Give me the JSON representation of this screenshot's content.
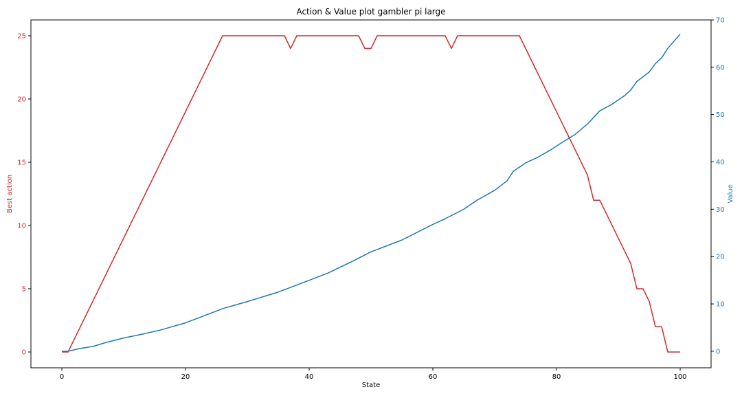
{
  "chart_data": {
    "type": "line",
    "title": "Action & Value plot gambler pi large",
    "xlabel": "State",
    "ylabel_left": "Best action",
    "ylabel_right": "Value",
    "colors": {
      "left": "#d62728",
      "right": "#1f77b4"
    },
    "xlim": [
      -5,
      105
    ],
    "ylim_left": [
      -1.25,
      26.25
    ],
    "ylim_right": [
      -3.5,
      70
    ],
    "x_ticks": [
      0,
      20,
      40,
      60,
      80,
      100
    ],
    "y_left_ticks": [
      0,
      5,
      10,
      15,
      20,
      25
    ],
    "y_right_ticks": [
      0,
      10,
      20,
      30,
      40,
      50,
      60,
      70
    ],
    "grid": false,
    "series": [
      {
        "axis": "left",
        "points": [
          [
            0,
            0
          ],
          [
            1,
            0
          ],
          [
            26,
            25
          ],
          [
            36,
            25
          ],
          [
            37,
            24
          ],
          [
            38,
            25
          ],
          [
            48,
            25
          ],
          [
            49,
            24
          ],
          [
            50,
            24
          ],
          [
            51,
            25
          ],
          [
            62,
            25
          ],
          [
            63,
            24
          ],
          [
            64,
            25
          ],
          [
            74,
            25
          ],
          [
            85,
            14
          ],
          [
            86,
            12
          ],
          [
            87,
            12
          ],
          [
            92,
            7
          ],
          [
            93,
            5
          ],
          [
            94,
            5
          ],
          [
            95,
            4
          ],
          [
            96,
            2
          ],
          [
            97,
            2
          ],
          [
            98,
            0
          ],
          [
            100,
            0
          ]
        ]
      },
      {
        "axis": "right",
        "points": [
          [
            0,
            0
          ],
          [
            1,
            0
          ],
          [
            3,
            0.6
          ],
          [
            5,
            1.0
          ],
          [
            7,
            1.8
          ],
          [
            10,
            2.8
          ],
          [
            13,
            3.6
          ],
          [
            16,
            4.5
          ],
          [
            20,
            6.0
          ],
          [
            23,
            7.5
          ],
          [
            25,
            8.5
          ],
          [
            26,
            9.0
          ],
          [
            30,
            10.5
          ],
          [
            35,
            12.5
          ],
          [
            38,
            14.0
          ],
          [
            40,
            15.0
          ],
          [
            43,
            16.5
          ],
          [
            47,
            19.0
          ],
          [
            50,
            21.0
          ],
          [
            55,
            23.5
          ],
          [
            60,
            26.8
          ],
          [
            62,
            28.0
          ],
          [
            65,
            30.0
          ],
          [
            67,
            31.8
          ],
          [
            70,
            34.0
          ],
          [
            72,
            36.0
          ],
          [
            73,
            38.0
          ],
          [
            75,
            39.8
          ],
          [
            77,
            41.0
          ],
          [
            79,
            42.5
          ],
          [
            81,
            44.2
          ],
          [
            83,
            45.8
          ],
          [
            85,
            48.0
          ],
          [
            87,
            50.8
          ],
          [
            89,
            52.2
          ],
          [
            91,
            54.0
          ],
          [
            92,
            55.2
          ],
          [
            93,
            57.0
          ],
          [
            95,
            59.0
          ],
          [
            96,
            60.8
          ],
          [
            97,
            62.0
          ],
          [
            98,
            64.0
          ],
          [
            100,
            67.0
          ]
        ]
      }
    ]
  }
}
